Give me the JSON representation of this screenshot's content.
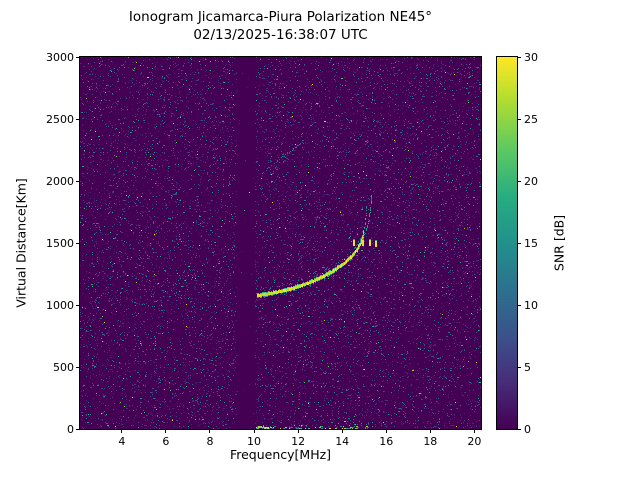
{
  "page": {
    "background": "#ffffff",
    "text_color": "#000000"
  },
  "chart_data": {
    "type": "heatmap",
    "title": "Ionogram Jicamarca-Piura Polarization NE45°",
    "subtitle": "02/13/2025-16:38:07 UTC",
    "xlabel": "Frequency[MHz]",
    "ylabel": "Virtual Distance[Km]",
    "xlim": [
      2.1,
      20.3
    ],
    "ylim": [
      0,
      3000
    ],
    "xticks": [
      4,
      6,
      8,
      10,
      12,
      14,
      16,
      18,
      20
    ],
    "yticks": [
      0,
      500,
      1000,
      1500,
      2000,
      2500,
      3000
    ],
    "grid": false,
    "colorbar": {
      "label": "SNR [dB]",
      "min": 0,
      "max": 30,
      "ticks": [
        0,
        5,
        10,
        15,
        20,
        25,
        30
      ],
      "colormap": "viridis",
      "stops": [
        "#440154",
        "#472c7a",
        "#3b528b",
        "#2c718e",
        "#21918c",
        "#27ad81",
        "#5cc863",
        "#aadc32",
        "#fde725"
      ]
    },
    "noise": {
      "seed": 42,
      "density": 0.11,
      "mean_snr": 5,
      "max_snr": 28
    },
    "blank_band_mhz": [
      9.2,
      10.05
    ],
    "main_trace": {
      "points": [
        [
          10.15,
          1075
        ],
        [
          10.5,
          1085
        ],
        [
          10.9,
          1098
        ],
        [
          11.3,
          1112
        ],
        [
          11.7,
          1130
        ],
        [
          12.1,
          1152
        ],
        [
          12.5,
          1178
        ],
        [
          12.9,
          1208
        ],
        [
          13.3,
          1243
        ],
        [
          13.7,
          1285
        ],
        [
          14.1,
          1335
        ],
        [
          14.45,
          1392
        ],
        [
          14.7,
          1448
        ],
        [
          14.88,
          1510
        ],
        [
          15.0,
          1590
        ],
        [
          15.08,
          1700
        ],
        [
          15.12,
          1800
        ]
      ],
      "peak_snr": 30,
      "faint_above_km": 1560
    },
    "x_mode_trace": {
      "points": [
        [
          14.78,
          1492
        ],
        [
          14.95,
          1540
        ],
        [
          15.1,
          1600
        ],
        [
          15.22,
          1680
        ],
        [
          15.3,
          1790
        ],
        [
          15.35,
          1900
        ]
      ],
      "snr": 16
    },
    "spread_f_marks": [
      [
        14.58,
        1500
      ],
      [
        14.95,
        1495
      ],
      [
        15.3,
        1500
      ],
      [
        15.55,
        1490
      ]
    ],
    "second_hop": {
      "start": [
        10.35,
        2060
      ],
      "end": [
        12.3,
        2330
      ],
      "snr": 14
    },
    "ground_echo": {
      "freq_range": [
        10.0,
        15.4
      ],
      "km_max": 28,
      "count": 70,
      "solid_range": [
        10.1,
        10.65
      ]
    }
  }
}
